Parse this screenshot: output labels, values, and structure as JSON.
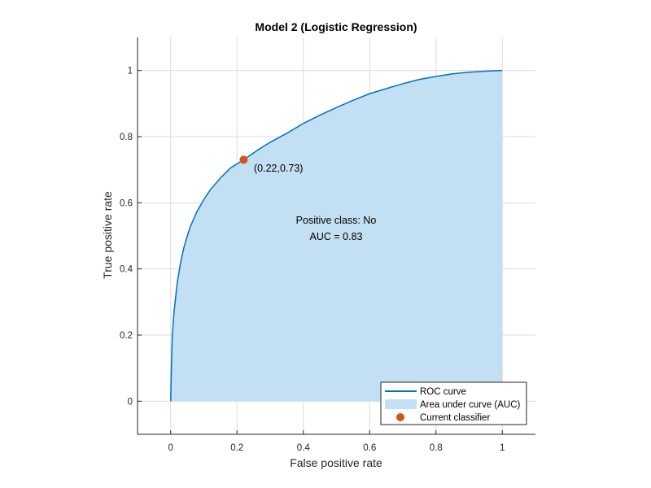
{
  "chart_data": {
    "type": "line",
    "title": "Model 2 (Logistic Regression)",
    "xlabel": "False positive rate",
    "ylabel": "True positive rate",
    "xlim": [
      -0.1,
      1.1
    ],
    "ylim": [
      -0.1,
      1.1
    ],
    "xticks": [
      0,
      0.2,
      0.4,
      0.6,
      0.8,
      1
    ],
    "yticks": [
      0,
      0.2,
      0.4,
      0.6,
      0.8,
      1
    ],
    "xtick_labels": [
      "0",
      "0.2",
      "0.4",
      "0.6",
      "0.8",
      "1"
    ],
    "ytick_labels": [
      "0",
      "0.2",
      "0.4",
      "0.6",
      "0.8",
      "1"
    ],
    "grid": true,
    "series": [
      {
        "name": "ROC curve",
        "color": "#0072bd",
        "x": [
          0,
          0.002,
          0.005,
          0.01,
          0.02,
          0.03,
          0.04,
          0.05,
          0.06,
          0.08,
          0.1,
          0.12,
          0.15,
          0.18,
          0.22,
          0.26,
          0.3,
          0.35,
          0.4,
          0.45,
          0.5,
          0.55,
          0.6,
          0.65,
          0.7,
          0.75,
          0.8,
          0.85,
          0.9,
          0.95,
          1.0
        ],
        "y": [
          0,
          0.1,
          0.2,
          0.27,
          0.36,
          0.42,
          0.465,
          0.5,
          0.53,
          0.575,
          0.61,
          0.64,
          0.675,
          0.705,
          0.73,
          0.758,
          0.783,
          0.81,
          0.84,
          0.865,
          0.888,
          0.91,
          0.93,
          0.945,
          0.96,
          0.973,
          0.982,
          0.99,
          0.995,
          0.998,
          1.0
        ]
      }
    ],
    "auc_fill": {
      "name": "Area under curve (AUC)",
      "color": "#c3dff3"
    },
    "marker": {
      "name": "Current classifier",
      "x": 0.22,
      "y": 0.73,
      "color": "#d95319",
      "label": "(0.22,0.73)"
    },
    "annotation": {
      "line1": "Positive class: No",
      "line2": "AUC = 0.83"
    },
    "legend": {
      "position": "bottom-right",
      "entries": [
        "ROC curve",
        "Area under curve (AUC)",
        "Current classifier"
      ]
    }
  }
}
